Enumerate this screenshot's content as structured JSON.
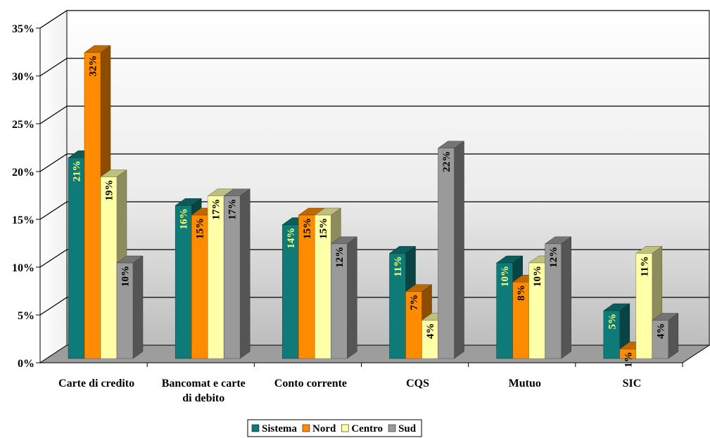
{
  "chart_data": {
    "type": "bar",
    "title": "",
    "xlabel": "",
    "ylabel": "",
    "ylim": [
      0,
      35
    ],
    "y_ticks": [
      "0%",
      "5%",
      "10%",
      "15%",
      "20%",
      "25%",
      "30%",
      "35%"
    ],
    "grid": "horizontal",
    "legend_position": "bottom",
    "categories": [
      "Carte di credito",
      "Bancomat e carte di debito",
      "Conto corrente",
      "CQS",
      "Mutuo",
      "SIC"
    ],
    "category_labels": [
      [
        "Carte di credito"
      ],
      [
        "Bancomat e carte",
        "di debito"
      ],
      [
        "Conto corrente"
      ],
      [
        "CQS"
      ],
      [
        "Mutuo"
      ],
      [
        "SIC"
      ]
    ],
    "series": [
      {
        "name": "Sistema",
        "values": [
          21,
          16,
          14,
          11,
          10,
          5
        ],
        "labels": [
          "21%",
          "16%",
          "14%",
          "11%",
          "10%",
          "5%"
        ],
        "color": "#0f7b79",
        "label_color": "#ffff66"
      },
      {
        "name": "Nord",
        "values": [
          32,
          15,
          15,
          7,
          8,
          1
        ],
        "labels": [
          "32%",
          "15%",
          "15%",
          "7%",
          "8%",
          "1%"
        ],
        "color": "#ff8c00",
        "label_color": "#000000"
      },
      {
        "name": "Centro",
        "values": [
          19,
          17,
          15,
          4,
          10,
          11
        ],
        "labels": [
          "19%",
          "17%",
          "15%",
          "4%",
          "10%",
          "11%"
        ],
        "color": "#ffffa8",
        "label_color": "#000000"
      },
      {
        "name": "Sud",
        "values": [
          10,
          17,
          12,
          22,
          12,
          4
        ],
        "labels": [
          "10%",
          "17%",
          "12%",
          "22%",
          "12%",
          "4%"
        ],
        "color": "#9a9a9a",
        "label_color": "#000000"
      }
    ]
  }
}
